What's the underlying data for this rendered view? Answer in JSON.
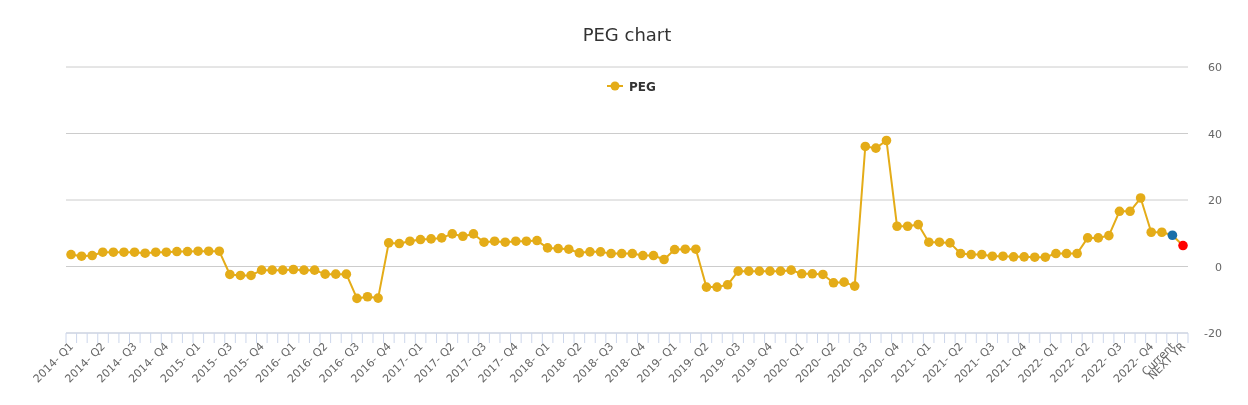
{
  "chart_data": {
    "type": "line",
    "title": "PEG chart",
    "categories": [
      "2014- Q1",
      null,
      null,
      "2014- Q2",
      null,
      null,
      "2014- Q3",
      null,
      null,
      "2014- Q4",
      null,
      null,
      "2015- Q1",
      null,
      null,
      "2015- Q3",
      null,
      null,
      "2015- Q4",
      null,
      null,
      "2016- Q1",
      null,
      null,
      "2016- Q2",
      null,
      null,
      "2016- Q3",
      null,
      null,
      "2016- Q4",
      null,
      null,
      "2017- Q1",
      null,
      null,
      "2017- Q2",
      null,
      null,
      "2017- Q3",
      null,
      null,
      "2017- Q4",
      null,
      null,
      "2018- Q1",
      null,
      null,
      "2018- Q2",
      null,
      null,
      "2018- Q3",
      null,
      null,
      "2018- Q4",
      null,
      null,
      "2019- Q1",
      null,
      null,
      "2019- Q2",
      null,
      null,
      "2019- Q3",
      null,
      null,
      "2019- Q4",
      null,
      null,
      "2020- Q1",
      null,
      null,
      "2020- Q2",
      null,
      null,
      "2020- Q3",
      null,
      null,
      "2020- Q4",
      null,
      null,
      "2021- Q1",
      null,
      null,
      "2021- Q2",
      null,
      null,
      "2021- Q3",
      null,
      null,
      "2021- Q4",
      null,
      null,
      "2022- Q1",
      null,
      null,
      "2022- Q2",
      null,
      null,
      "2022- Q3",
      null,
      null,
      "2022- Q4",
      null,
      "Current",
      "NEXT YR"
    ],
    "series": [
      {
        "name": "PEG",
        "color": "#e4ac18",
        "values": [
          3.6,
          3.1,
          3.3,
          4.3,
          4.3,
          4.3,
          4.3,
          4.0,
          4.3,
          4.3,
          4.5,
          4.5,
          4.6,
          4.6,
          4.6,
          -2.4,
          -2.7,
          -2.7,
          -1.1,
          -1.1,
          -1.1,
          -0.9,
          -1.1,
          -1.1,
          -2.3,
          -2.3,
          -2.3,
          -9.6,
          -9.1,
          -9.5,
          7.1,
          6.9,
          7.6,
          8.1,
          8.3,
          8.6,
          9.8,
          9.1,
          9.8,
          7.3,
          7.6,
          7.3,
          7.6,
          7.6,
          7.8,
          5.6,
          5.4,
          5.2,
          4.1,
          4.4,
          4.4,
          3.9,
          3.9,
          3.9,
          3.3,
          3.3,
          2.1,
          5.1,
          5.2,
          5.2,
          -6.2,
          -6.2,
          -5.5,
          -1.4,
          -1.4,
          -1.4,
          -1.4,
          -1.4,
          -1.1,
          -2.2,
          -2.2,
          -2.4,
          -4.9,
          -4.7,
          -5.9,
          36.1,
          35.6,
          37.9,
          12.1,
          12.1,
          12.6,
          7.3,
          7.3,
          7.1,
          3.9,
          3.6,
          3.6,
          3.1,
          3.1,
          2.9,
          2.9,
          2.8,
          2.8,
          3.9,
          3.9,
          3.9,
          8.6,
          8.6,
          9.3,
          16.6,
          16.6,
          20.6,
          10.3,
          10.3,
          9.4,
          6.3
        ],
        "colors": [
          "#e4ac18",
          "#e4ac18",
          "#e4ac18",
          "#e4ac18",
          "#e4ac18",
          "#e4ac18",
          "#e4ac18",
          "#e4ac18",
          "#e4ac18",
          "#e4ac18",
          "#e4ac18",
          "#e4ac18",
          "#e4ac18",
          "#e4ac18",
          "#e4ac18",
          "#e4ac18",
          "#e4ac18",
          "#e4ac18",
          "#e4ac18",
          "#e4ac18",
          "#e4ac18",
          "#e4ac18",
          "#e4ac18",
          "#e4ac18",
          "#e4ac18",
          "#e4ac18",
          "#e4ac18",
          "#e4ac18",
          "#e4ac18",
          "#e4ac18",
          "#e4ac18",
          "#e4ac18",
          "#e4ac18",
          "#e4ac18",
          "#e4ac18",
          "#e4ac18",
          "#e4ac18",
          "#e4ac18",
          "#e4ac18",
          "#e4ac18",
          "#e4ac18",
          "#e4ac18",
          "#e4ac18",
          "#e4ac18",
          "#e4ac18",
          "#e4ac18",
          "#e4ac18",
          "#e4ac18",
          "#e4ac18",
          "#e4ac18",
          "#e4ac18",
          "#e4ac18",
          "#e4ac18",
          "#e4ac18",
          "#e4ac18",
          "#e4ac18",
          "#e4ac18",
          "#e4ac18",
          "#e4ac18",
          "#e4ac18",
          "#e4ac18",
          "#e4ac18",
          "#e4ac18",
          "#e4ac18",
          "#e4ac18",
          "#e4ac18",
          "#e4ac18",
          "#e4ac18",
          "#e4ac18",
          "#e4ac18",
          "#e4ac18",
          "#e4ac18",
          "#e4ac18",
          "#e4ac18",
          "#e4ac18",
          "#e4ac18",
          "#e4ac18",
          "#e4ac18",
          "#e4ac18",
          "#e4ac18",
          "#e4ac18",
          "#e4ac18",
          "#e4ac18",
          "#e4ac18",
          "#e4ac18",
          "#e4ac18",
          "#e4ac18",
          "#e4ac18",
          "#e4ac18",
          "#e4ac18",
          "#e4ac18",
          "#e4ac18",
          "#e4ac18",
          "#e4ac18",
          "#e4ac18",
          "#e4ac18",
          "#e4ac18",
          "#e4ac18",
          "#e4ac18",
          "#e4ac18",
          "#e4ac18",
          "#e4ac18",
          "#e4ac18",
          "#e4ac18",
          "#1a6fa8",
          "#ff0000"
        ]
      }
    ],
    "ylim": [
      -20,
      60
    ],
    "yticks": [
      -20,
      0,
      20,
      40,
      60
    ],
    "grid": "y",
    "legend": "top",
    "marker": "circle",
    "line_style": "solid"
  }
}
